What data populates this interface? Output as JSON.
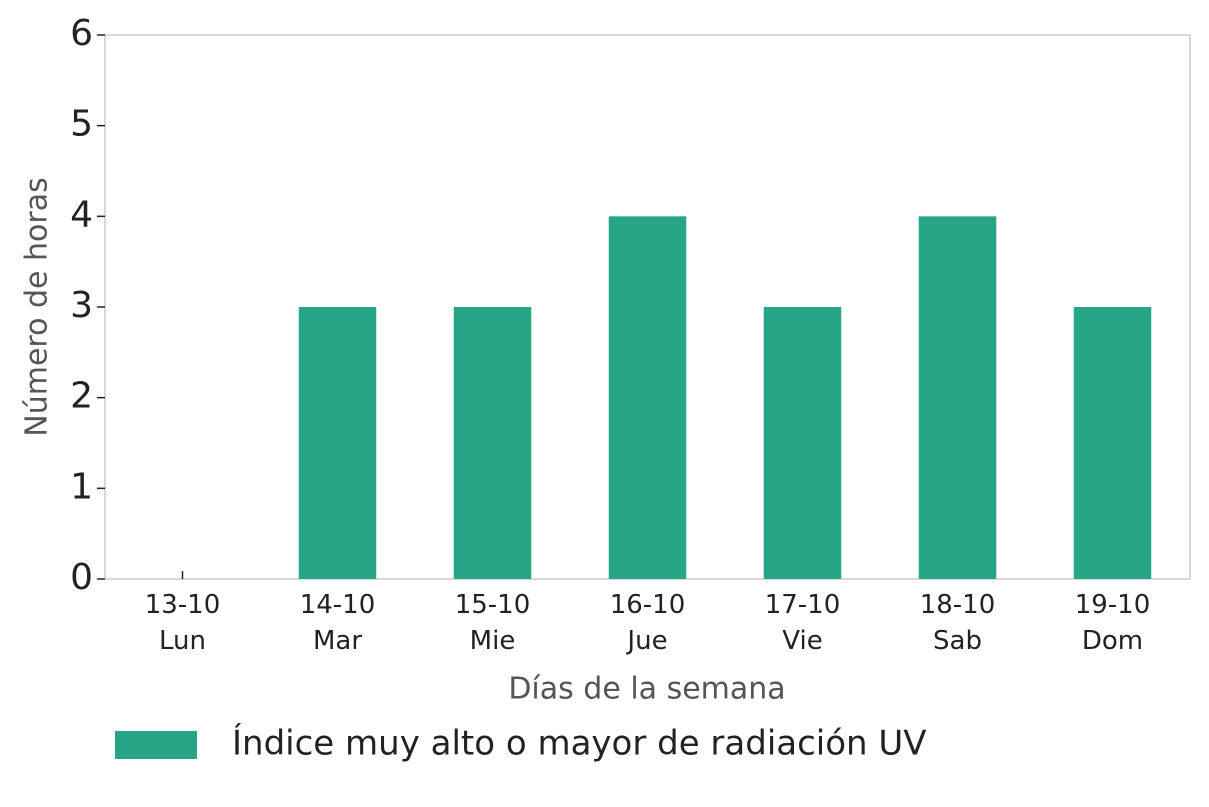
{
  "chart_data": {
    "type": "bar",
    "xlabel": "Días de la semana",
    "ylabel": "Número de horas",
    "categories": [
      "13-10\nLun",
      "14-10\nMar",
      "15-10\nMie",
      "16-10\nJue",
      "17-10\nVie",
      "18-10\nSab",
      "19-10\nDom"
    ],
    "series": [
      {
        "name": "Índice muy alto o mayor de radiación UV",
        "color": "#27a687",
        "values": [
          0,
          3,
          3,
          4,
          3,
          4,
          3
        ]
      }
    ],
    "ylim": [
      0,
      6
    ],
    "yticks": [
      0,
      1,
      2,
      3,
      4,
      5,
      6
    ],
    "grid": false,
    "legend": "bottom"
  }
}
